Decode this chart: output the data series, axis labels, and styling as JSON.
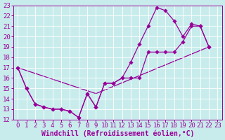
{
  "xlabel": "Windchill (Refroidissement éolien,°C)",
  "bg_color": "#c8ecec",
  "grid_color": "#b0d8d8",
  "line_color": "#990099",
  "xlim": [
    -0.5,
    23.5
  ],
  "ylim": [
    12,
    23
  ],
  "xticks": [
    0,
    1,
    2,
    3,
    4,
    5,
    6,
    7,
    8,
    9,
    10,
    11,
    12,
    13,
    14,
    15,
    16,
    17,
    18,
    19,
    20,
    21,
    22,
    23
  ],
  "yticks": [
    12,
    13,
    14,
    15,
    16,
    17,
    18,
    19,
    20,
    21,
    22,
    23
  ],
  "line1_x": [
    0,
    1,
    2,
    3,
    4,
    5,
    6,
    7,
    8,
    9,
    10,
    11,
    12,
    13,
    14,
    15,
    16,
    17,
    18,
    19,
    20,
    21,
    22
  ],
  "line1_y": [
    17.0,
    15.0,
    13.5,
    13.2,
    13.0,
    13.0,
    12.8,
    12.2,
    14.5,
    13.2,
    15.5,
    15.5,
    16.0,
    16.0,
    16.0,
    18.5,
    18.5,
    18.5,
    18.5,
    19.5,
    21.0,
    21.0,
    19.0
  ],
  "line2_x": [
    0,
    1,
    2,
    3,
    4,
    5,
    6,
    7,
    8,
    9,
    10,
    11,
    12,
    13,
    14,
    15,
    16,
    17,
    18,
    19,
    20,
    21,
    22
  ],
  "line2_y": [
    17.0,
    15.0,
    13.5,
    13.2,
    13.0,
    13.0,
    12.8,
    12.2,
    14.5,
    13.2,
    15.5,
    15.5,
    16.0,
    17.5,
    19.3,
    21.0,
    22.8,
    22.5,
    21.5,
    20.0,
    21.2,
    21.0,
    19.0
  ],
  "line3_x": [
    0,
    9,
    22
  ],
  "line3_y": [
    17.0,
    14.5,
    19.0
  ],
  "font_size": 7,
  "tick_font_size": 6.5
}
